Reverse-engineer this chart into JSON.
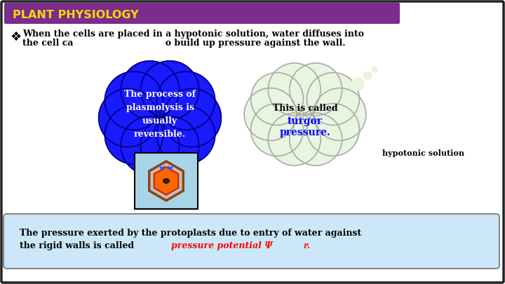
{
  "title": "PLANT PHYSIOLOGY",
  "title_color": "#FFD700",
  "title_bg": "#7B2D8B",
  "bullet_line1": "When the cells are placed in a hypotonic solution, water diffuses into",
  "bullet_line2": "the cell ca                              o build up pressure against the wall.",
  "bullet_symbol": "❖",
  "blue_cloud_text": "The process of\nplasmolysis is\nusually\nreversible.",
  "blue_cloud_color": "#1a1aff",
  "blue_cloud_edge": "#000080",
  "light_cloud_text1": "This is called",
  "light_cloud_text2": "turgor",
  "light_cloud_text3": "pressure.",
  "light_cloud_color": "#e8f5e0",
  "light_cloud_edge": "#aaaaaa",
  "hypotonic_label": "hypotonic solution",
  "cell_bg": "#a8d4e8",
  "hex_outer_color": "#808080",
  "hex_outer_edge": "#8B4513",
  "hex_inner_color": "#ff6600",
  "hex_inner_edge": "#cc2200",
  "nucleus_color": "#222222",
  "arrow_color": "#3355ff",
  "bottom_box_bg": "#cce8f8",
  "bottom_box_edge": "#888888",
  "bottom_text1": "The pressure exerted by the protoplasts due to entry of water against",
  "bottom_text2a": "the rigid walls is called ",
  "bottom_text2b": "pressure potential Ψ",
  "bottom_text2c": "P",
  "bottom_text2d": ".",
  "outer_border": "#222222",
  "inner_border": "#555555"
}
